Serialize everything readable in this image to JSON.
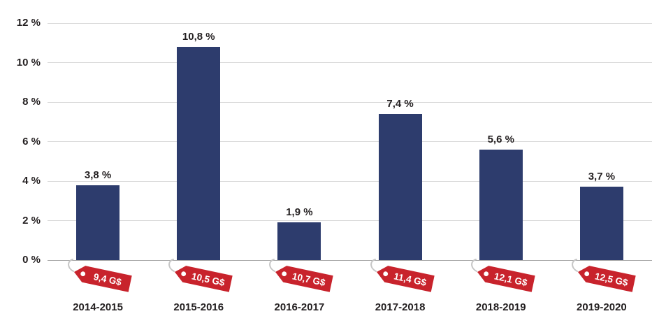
{
  "chart_data": {
    "type": "bar",
    "title": "",
    "xlabel": "",
    "ylabel": "",
    "grid": true,
    "legend": false,
    "ylim": [
      0,
      12
    ],
    "categories": [
      "2014-2015",
      "2015-2016",
      "2016-2017",
      "2017-2018",
      "2018-2019",
      "2019-2020"
    ],
    "values": [
      3.8,
      10.8,
      1.9,
      7.4,
      5.6,
      3.7
    ],
    "bar_labels": [
      "3,8 %",
      "10,8 %",
      "1,9 %",
      "7,4 %",
      "5,6 %",
      "3,7 %"
    ],
    "tag_labels": [
      "9,4 G$",
      "10,5 G$",
      "10,7 G$",
      "11,4 G$",
      "12,1 G$",
      "12,5 G$"
    ],
    "y_ticks": [
      {
        "value": 0,
        "label": "0 %"
      },
      {
        "value": 2,
        "label": "2 %"
      },
      {
        "value": 4,
        "label": "4 %"
      },
      {
        "value": 6,
        "label": "6 %"
      },
      {
        "value": 8,
        "label": "8 %"
      },
      {
        "value": 10,
        "label": "10 %"
      },
      {
        "value": 12,
        "label": "12 %"
      }
    ],
    "colors": {
      "bar": "#2d3c6d",
      "tag": "#c8232c",
      "tag_text": "#ffffff",
      "tag_string": "#c6c6c6",
      "grid": "#d9d9d9",
      "axis": "#a6a6a6",
      "text": "#231f20"
    }
  }
}
